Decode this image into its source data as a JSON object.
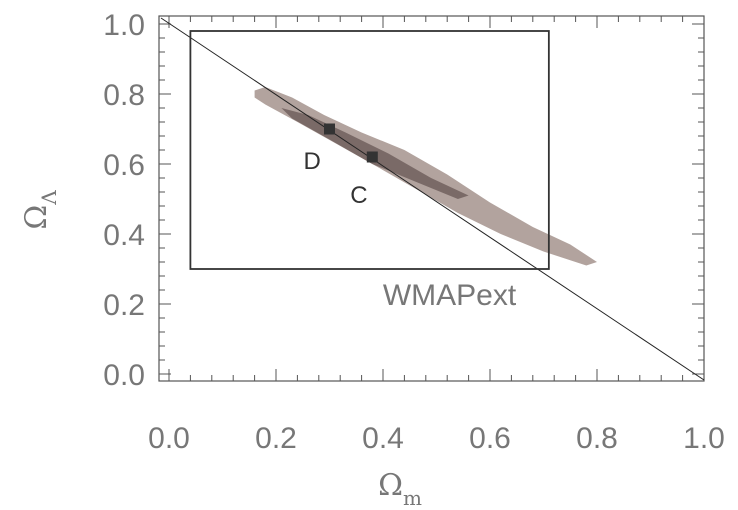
{
  "chart_data": {
    "type": "contour",
    "xlabel": {
      "main": "Ω",
      "sub": "m"
    },
    "ylabel": {
      "main": "Ω",
      "sub": "Λ"
    },
    "xlim": [
      0.0,
      1.0
    ],
    "ylim": [
      -0.03,
      1.03
    ],
    "x_ticks": [
      "0.0",
      "0.2",
      "0.4",
      "0.6",
      "0.8",
      "1.0"
    ],
    "y_ticks": [
      "0.0",
      "0.2",
      "0.4",
      "0.6",
      "0.8",
      "1.0"
    ],
    "x_tick_values": [
      0.0,
      0.2,
      0.4,
      0.6,
      0.8,
      1.0
    ],
    "y_tick_values": [
      0.0,
      0.2,
      0.4,
      0.6,
      0.8,
      1.0
    ],
    "flat_universe_line": [
      [
        0.0,
        1.0
      ],
      [
        1.0,
        0.0
      ]
    ],
    "prior_box": {
      "label": "WMAPext",
      "x": [
        0.04,
        0.71
      ],
      "y": [
        0.3,
        0.98
      ]
    },
    "contours": [
      {
        "level": "outer",
        "color": "#b2a39e",
        "points": [
          [
            0.16,
            0.81
          ],
          [
            0.18,
            0.82
          ],
          [
            0.23,
            0.79
          ],
          [
            0.29,
            0.74
          ],
          [
            0.36,
            0.69
          ],
          [
            0.44,
            0.64
          ],
          [
            0.52,
            0.57
          ],
          [
            0.6,
            0.49
          ],
          [
            0.68,
            0.42
          ],
          [
            0.75,
            0.37
          ],
          [
            0.8,
            0.32
          ],
          [
            0.78,
            0.31
          ],
          [
            0.7,
            0.35
          ],
          [
            0.62,
            0.4
          ],
          [
            0.54,
            0.46
          ],
          [
            0.46,
            0.53
          ],
          [
            0.38,
            0.6
          ],
          [
            0.31,
            0.66
          ],
          [
            0.24,
            0.72
          ],
          [
            0.18,
            0.77
          ],
          [
            0.16,
            0.79
          ]
        ]
      },
      {
        "level": "inner",
        "color": "#7a6a67",
        "points": [
          [
            0.21,
            0.76
          ],
          [
            0.26,
            0.74
          ],
          [
            0.33,
            0.69
          ],
          [
            0.41,
            0.63
          ],
          [
            0.49,
            0.56
          ],
          [
            0.56,
            0.51
          ],
          [
            0.54,
            0.5
          ],
          [
            0.46,
            0.55
          ],
          [
            0.38,
            0.6
          ],
          [
            0.3,
            0.67
          ],
          [
            0.23,
            0.73
          ]
        ]
      }
    ],
    "points": [
      {
        "label": "D",
        "x": 0.3,
        "y": 0.7
      },
      {
        "label": "C",
        "x": 0.38,
        "y": 0.62
      }
    ]
  }
}
